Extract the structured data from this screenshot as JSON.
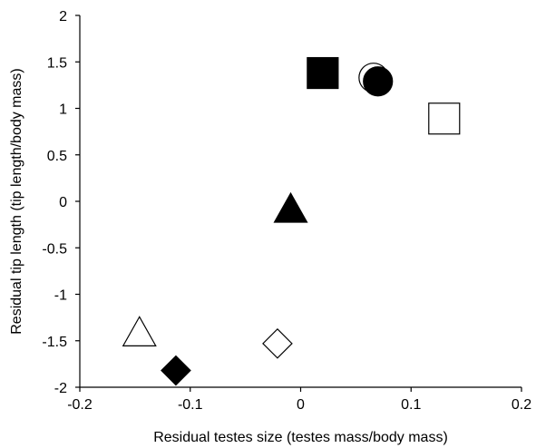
{
  "chart_data": {
    "type": "scatter",
    "xlabel": "Residual testes size (testes mass/body mass)",
    "ylabel": "Residual tip length (tip length/body mass)",
    "xlim": [
      -0.2,
      0.2
    ],
    "ylim": [
      -2,
      2
    ],
    "xticks": [
      "-0.2",
      "-0.1",
      "0",
      "0.1",
      "0.2"
    ],
    "yticks": [
      "2",
      "1.5",
      "1",
      "0.5",
      "0",
      "-0.5",
      "-1",
      "-1.5",
      "-2"
    ],
    "grid": false,
    "points": [
      {
        "x": 0.02,
        "y": 1.38,
        "shape": "square",
        "filled": true
      },
      {
        "x": 0.066,
        "y": 1.33,
        "shape": "circle",
        "filled": false
      },
      {
        "x": 0.07,
        "y": 1.29,
        "shape": "circle",
        "filled": true
      },
      {
        "x": 0.13,
        "y": 0.89,
        "shape": "square",
        "filled": false
      },
      {
        "x": -0.009,
        "y": -0.1,
        "shape": "triangle",
        "filled": true
      },
      {
        "x": -0.146,
        "y": -1.43,
        "shape": "triangle",
        "filled": false
      },
      {
        "x": -0.021,
        "y": -1.53,
        "shape": "diamond",
        "filled": false
      },
      {
        "x": -0.113,
        "y": -1.82,
        "shape": "diamond",
        "filled": true
      }
    ],
    "colors": {
      "marker": "#000000",
      "open_fill": "#ffffff",
      "axis": "#000000"
    }
  }
}
